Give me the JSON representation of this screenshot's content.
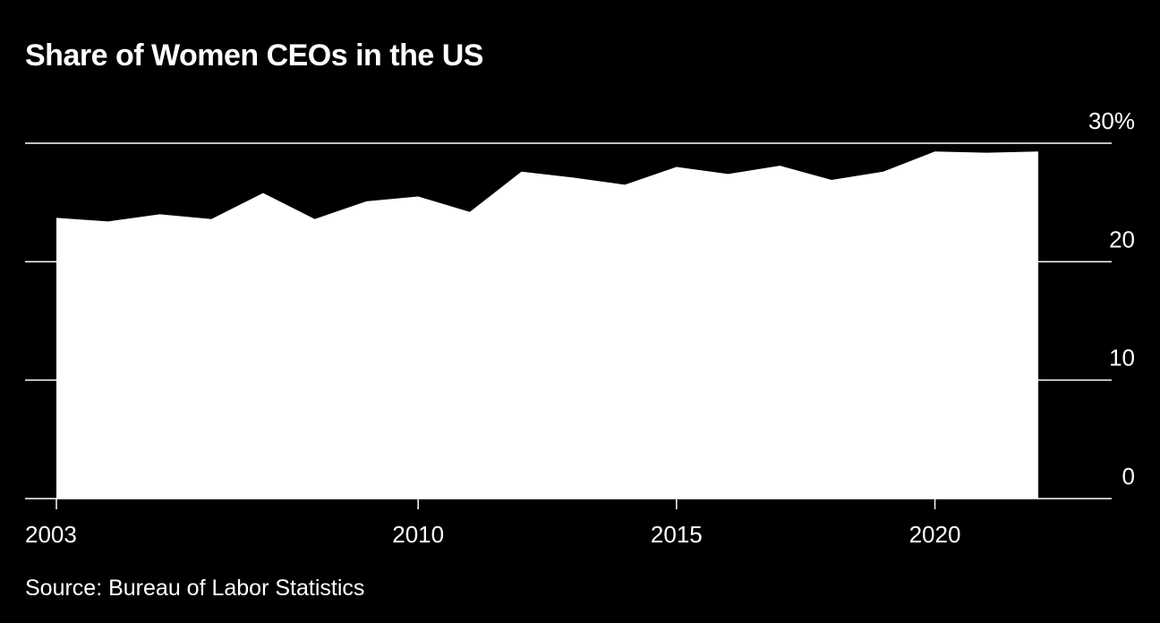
{
  "title": "Share of Women CEOs in the US",
  "source": "Source: Bureau of Labor Statistics",
  "colors": {
    "background": "#000000",
    "area": "#ffffff",
    "gridline": "#ffffff",
    "text": "#ffffff"
  },
  "chart_data": {
    "type": "area",
    "title": "Share of Women CEOs in the US",
    "xlabel": "",
    "ylabel": "",
    "x": [
      2003,
      2004,
      2005,
      2006,
      2007,
      2008,
      2009,
      2010,
      2011,
      2012,
      2013,
      2014,
      2015,
      2016,
      2017,
      2018,
      2019,
      2020,
      2021,
      2022
    ],
    "series": [
      {
        "name": "Share of women CEOs (%)",
        "values": [
          23.7,
          23.4,
          24.0,
          23.6,
          25.8,
          23.6,
          25.1,
          25.5,
          24.2,
          27.6,
          27.1,
          26.5,
          28.0,
          27.4,
          28.1,
          26.9,
          27.6,
          29.3,
          29.2,
          29.3
        ]
      }
    ],
    "ylim": [
      0,
      30
    ],
    "y_ticks": [
      0,
      10,
      20,
      30
    ],
    "y_tick_labels": [
      "0",
      "10",
      "20",
      "30%"
    ],
    "x_ticks": [
      2003,
      2010,
      2015,
      2020
    ],
    "x_tick_labels": [
      "2003",
      "2010",
      "2015",
      "2020"
    ],
    "grid": true,
    "y_axis_position": "right"
  }
}
